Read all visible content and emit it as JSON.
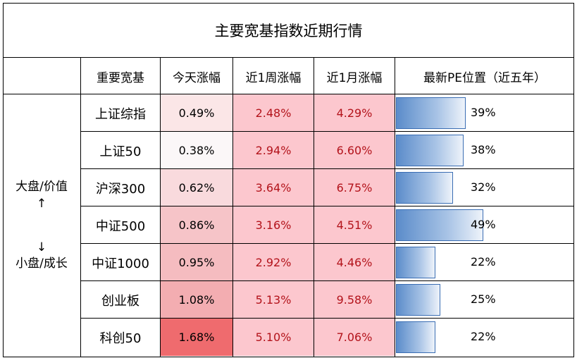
{
  "title": "主要宽基指数近期行情",
  "headers": [
    "重要宽基",
    "今天涨幅",
    "近1周涨幅",
    "近1月涨幅",
    "最新PE位置（近五年）"
  ],
  "side_label": {
    "top": "大盘/价值",
    "up_arrow": "↑",
    "down_arrow": "↓",
    "bottom": "小盘/成长"
  },
  "rows": [
    {
      "name": "上证综指",
      "today": "0.49%",
      "week": "2.48%",
      "month": "4.29%",
      "pe": "39%",
      "pe_value": 39,
      "today_bg": "#fbe6e7"
    },
    {
      "name": "上证50",
      "today": "0.38%",
      "week": "2.94%",
      "month": "6.60%",
      "pe": "38%",
      "pe_value": 38,
      "today_bg": "#fbf7f8"
    },
    {
      "name": "沪深300",
      "today": "0.62%",
      "week": "3.64%",
      "month": "6.75%",
      "pe": "32%",
      "pe_value": 32,
      "today_bg": "#f9dadd"
    },
    {
      "name": "中证500",
      "today": "0.86%",
      "week": "3.16%",
      "month": "4.51%",
      "pe": "49%",
      "pe_value": 49,
      "today_bg": "#f6c4c8"
    },
    {
      "name": "中证1000",
      "today": "0.95%",
      "week": "2.92%",
      "month": "4.46%",
      "pe": "22%",
      "pe_value": 22,
      "today_bg": "#f5bcc0"
    },
    {
      "name": "创业板",
      "today": "1.08%",
      "week": "5.13%",
      "month": "9.58%",
      "pe": "25%",
      "pe_value": 25,
      "today_bg": "#f3adb1"
    },
    {
      "name": "科创50",
      "today": "1.68%",
      "week": "5.10%",
      "month": "7.06%",
      "pe": "22%",
      "pe_value": 22,
      "today_bg": "#ef6b6e"
    }
  ],
  "colors": {
    "period_bg": "#fcc7ce",
    "period_text": "#b3131b",
    "bar_border": "#3a6db3"
  }
}
